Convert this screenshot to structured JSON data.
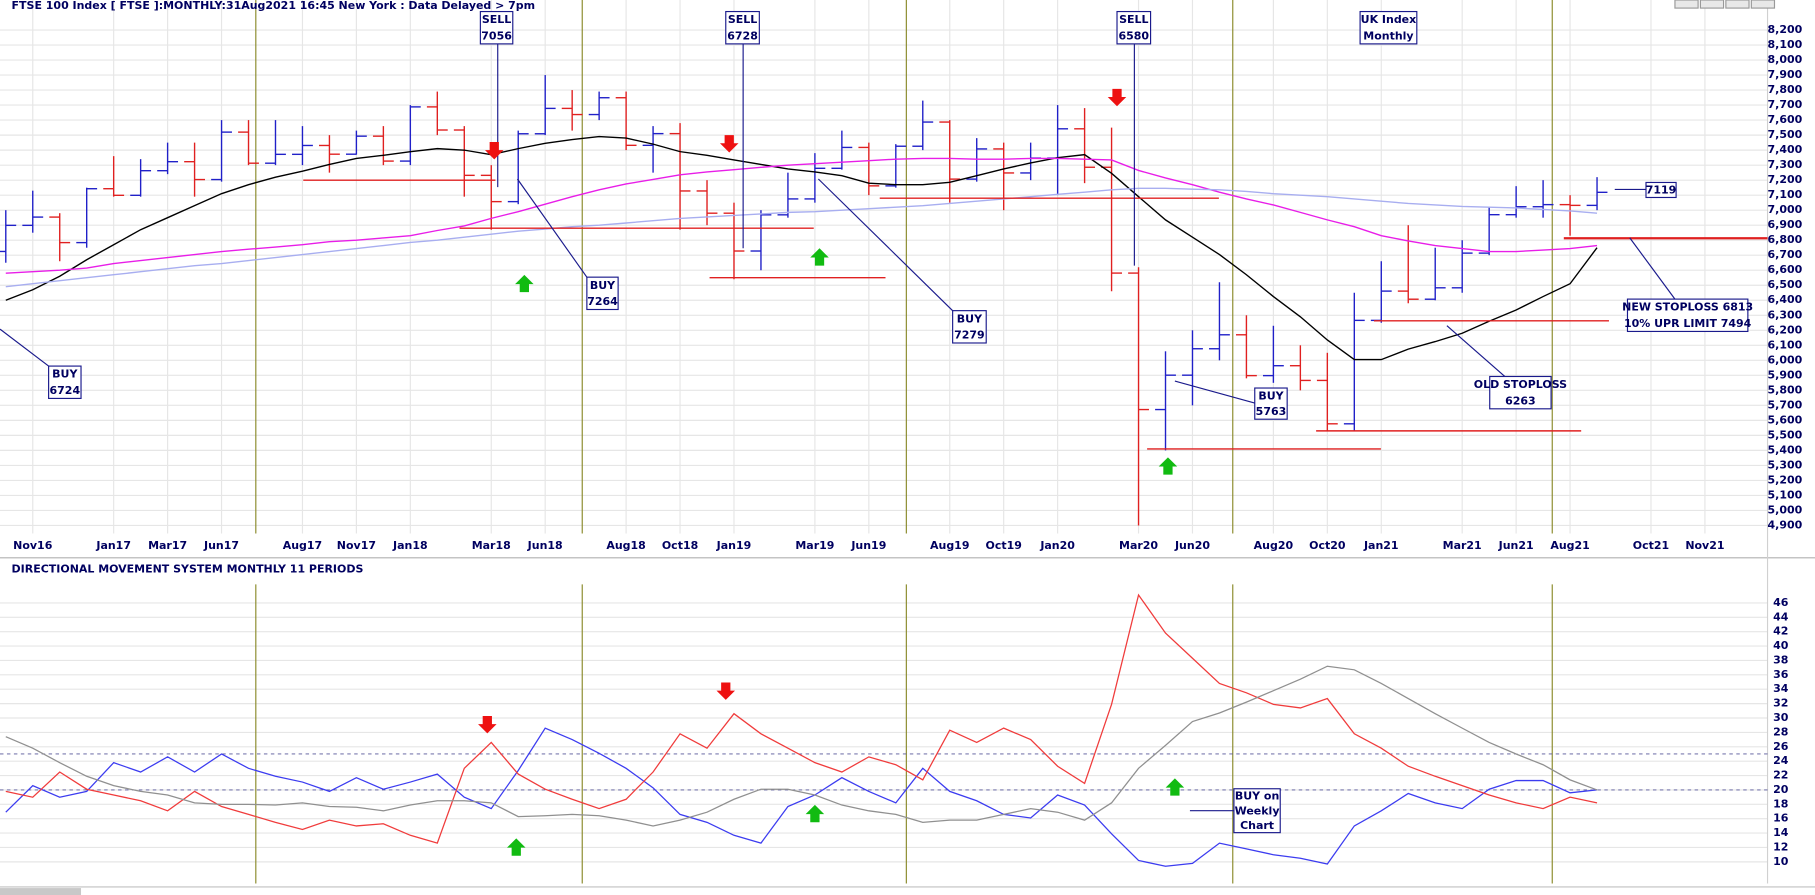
{
  "chart_data": [
    {
      "type": "ohlc",
      "title": "FTSE 100 Index [ FTSE ]:MONTHLY:31Aug2021 16:45 New York : Data Delayed > 7pm",
      "categories": [
        null,
        "Nov16",
        null,
        null,
        "Jan17",
        null,
        "Mar17",
        null,
        "Jun17",
        null,
        null,
        "Aug17",
        null,
        "Nov17",
        null,
        "Jan18",
        null,
        null,
        "Mar18",
        null,
        "Jun18",
        null,
        null,
        "Aug18",
        null,
        "Oct18",
        null,
        "Jan19",
        null,
        null,
        "Mar19",
        null,
        "Jun19",
        null,
        null,
        "Aug19",
        null,
        "Oct19",
        null,
        "Jan20",
        null,
        null,
        "Mar20",
        null,
        "Jun20",
        null,
        null,
        "Aug20",
        null,
        "Oct20",
        null,
        "Jan21",
        null,
        null,
        "Mar21",
        null,
        "Jun21",
        null,
        "Aug21",
        null,
        null,
        "Oct21",
        null,
        "Nov21"
      ],
      "open": [
        6725,
        6899,
        6954,
        6784,
        7143,
        7099,
        7263,
        7323,
        7204,
        7520,
        7313,
        7372,
        7431,
        7373,
        7493,
        7327,
        7688,
        7534,
        7232,
        7057,
        7509,
        7678,
        7637,
        7749,
        7432,
        7510,
        7128,
        6980,
        6728,
        6969,
        7075,
        7279,
        7418,
        7162,
        7426,
        7587,
        7207,
        7408,
        7248,
        7347,
        7542,
        7286,
        6581,
        5672,
        5901,
        6077,
        6170,
        5898,
        5964,
        5866,
        5577,
        6266,
        6461,
        6407,
        6483,
        6714,
        6970,
        7023,
        7037,
        7032,
        null,
        null,
        null,
        null
      ],
      "high": [
        7000,
        7130,
        6980,
        7150,
        7360,
        7340,
        7450,
        7450,
        7600,
        7600,
        7600,
        7560,
        7500,
        7530,
        7560,
        7700,
        7790,
        7560,
        7300,
        7530,
        7900,
        7800,
        7790,
        7790,
        7560,
        7580,
        7200,
        7050,
        7000,
        7250,
        7380,
        7530,
        7450,
        7440,
        7730,
        7600,
        7480,
        7450,
        7450,
        7700,
        7680,
        7550,
        6620,
        6060,
        6200,
        6520,
        6300,
        6230,
        6100,
        6050,
        6450,
        6660,
        6900,
        6750,
        6800,
        7020,
        7160,
        7200,
        7100,
        7220,
        null,
        null,
        null,
        null
      ],
      "low": [
        6650,
        6850,
        6660,
        6750,
        7090,
        7090,
        7240,
        7090,
        7190,
        7300,
        7300,
        7300,
        7250,
        7370,
        7300,
        7300,
        7500,
        7090,
        6870,
        7040,
        7500,
        7530,
        7600,
        7400,
        7250,
        6870,
        6900,
        6540,
        6600,
        6950,
        7050,
        7270,
        7100,
        7150,
        7400,
        7050,
        7190,
        7000,
        7200,
        7100,
        7180,
        6460,
        4900,
        5400,
        5700,
        6000,
        5880,
        5850,
        5800,
        5530,
        5530,
        6250,
        6380,
        6400,
        6450,
        6700,
        6950,
        6950,
        6830,
        7000,
        null,
        null,
        null,
        null
      ],
      "close": [
        6899,
        6954,
        6784,
        7143,
        7099,
        7263,
        7323,
        7204,
        7520,
        7313,
        7372,
        7431,
        7373,
        7493,
        7327,
        7688,
        7534,
        7232,
        7057,
        7509,
        7678,
        7637,
        7749,
        7432,
        7510,
        7128,
        6980,
        6728,
        6969,
        7075,
        7279,
        7418,
        7162,
        7426,
        7587,
        7207,
        7408,
        7248,
        7347,
        7542,
        7286,
        6581,
        5672,
        5901,
        6077,
        6170,
        5898,
        5964,
        5866,
        5577,
        6266,
        6461,
        6407,
        6483,
        6714,
        6970,
        7023,
        7037,
        7032,
        7119,
        null,
        null,
        null,
        null
      ],
      "up_color": "#2020c8",
      "down_color": "#e02020",
      "series": [
        {
          "color": "#000000",
          "values": [
            6400,
            6470,
            6560,
            6670,
            6770,
            6870,
            6950,
            7030,
            7110,
            7170,
            7220,
            7260,
            7305,
            7345,
            7365,
            7390,
            7410,
            7400,
            7370,
            7410,
            7445,
            7470,
            7490,
            7480,
            7440,
            7390,
            7365,
            7335,
            7305,
            7275,
            7255,
            7230,
            7180,
            7170,
            7170,
            7185,
            7230,
            7275,
            7315,
            7350,
            7370,
            7245,
            7090,
            6935,
            6820,
            6705,
            6570,
            6425,
            6290,
            6135,
            6005,
            6005,
            6075,
            6125,
            6180,
            6260,
            6335,
            6425,
            6510,
            6750,
            null,
            null,
            null,
            null
          ]
        },
        {
          "color": "#e81ee8",
          "values": [
            6580,
            6590,
            6600,
            6615,
            6645,
            6665,
            6685,
            6705,
            6725,
            6740,
            6755,
            6770,
            6790,
            6800,
            6815,
            6830,
            6865,
            6895,
            6945,
            6990,
            7040,
            7090,
            7135,
            7175,
            7205,
            7235,
            7255,
            7270,
            7285,
            7300,
            7310,
            7320,
            7330,
            7340,
            7345,
            7345,
            7340,
            7340,
            7345,
            7345,
            7340,
            7335,
            7265,
            7215,
            7170,
            7120,
            7075,
            7035,
            6985,
            6935,
            6890,
            6830,
            6795,
            6765,
            6745,
            6725,
            6725,
            6735,
            6745,
            6765,
            null,
            null,
            null,
            null
          ]
        },
        {
          "color": "#a8aef0",
          "values": [
            6490,
            6510,
            6530,
            6550,
            6570,
            6590,
            6610,
            6630,
            6645,
            6665,
            6685,
            6705,
            6725,
            6745,
            6765,
            6785,
            6800,
            6820,
            6840,
            6860,
            6875,
            6890,
            6900,
            6915,
            6930,
            6945,
            6955,
            6965,
            6975,
            6985,
            6990,
            7000,
            7010,
            7020,
            7030,
            7045,
            7060,
            7075,
            7090,
            7105,
            7120,
            7135,
            7145,
            7145,
            7140,
            7135,
            7125,
            7110,
            7100,
            7090,
            7075,
            7060,
            7045,
            7035,
            7025,
            7020,
            7015,
            7005,
            6995,
            6980,
            null,
            null,
            null,
            null
          ]
        }
      ],
      "levels": {
        "color": "#e02020",
        "values": [
          7200,
          6880,
          6550,
          7080,
          5410,
          6263,
          5530,
          6813
        ]
      },
      "annotations": [
        {
          "lines": [
            "SELL",
            "7056"
          ]
        },
        {
          "lines": [
            "SELL",
            "6728"
          ]
        },
        {
          "lines": [
            "SELL",
            "6580"
          ]
        },
        {
          "lines": [
            "UK Index",
            "Monthly"
          ]
        },
        {
          "lines": [
            "BUY",
            "6724"
          ]
        },
        {
          "lines": [
            "BUY",
            "7264"
          ]
        },
        {
          "lines": [
            "BUY",
            "7279"
          ]
        },
        {
          "lines": [
            "BUY",
            "5763"
          ]
        },
        {
          "lines": [
            "OLD STOPLOSS",
            "6263"
          ]
        },
        {
          "lines": [
            "NEW STOPLOSS 6813",
            "10% UPR LIMIT 7494"
          ]
        },
        {
          "lines": [
            "7119"
          ]
        }
      ],
      "ylim": [
        4850,
        8400
      ],
      "yticks": [
        {
          "value": 4900,
          "label": "4,900"
        },
        {
          "value": 5000,
          "label": "5,000"
        },
        {
          "value": 5100,
          "label": "5,100"
        },
        {
          "value": 5200,
          "label": "5,200"
        },
        {
          "value": 5300,
          "label": "5,300"
        },
        {
          "value": 5400,
          "label": "5,400"
        },
        {
          "value": 5500,
          "label": "5,500"
        },
        {
          "value": 5600,
          "label": "5,600"
        },
        {
          "value": 5700,
          "label": "5,700"
        },
        {
          "value": 5800,
          "label": "5,800"
        },
        {
          "value": 5900,
          "label": "5,900"
        },
        {
          "value": 6000,
          "label": "6,000"
        },
        {
          "value": 6100,
          "label": "6,100"
        },
        {
          "value": 6200,
          "label": "6,200"
        },
        {
          "value": 6300,
          "label": "6,300"
        },
        {
          "value": 6400,
          "label": "6,400"
        },
        {
          "value": 6500,
          "label": "6,500"
        },
        {
          "value": 6600,
          "label": "6,600"
        },
        {
          "value": 6700,
          "label": "6,700"
        },
        {
          "value": 6800,
          "label": "6,800"
        },
        {
          "value": 6900,
          "label": "6,900"
        },
        {
          "value": 7000,
          "label": "7,000"
        },
        {
          "value": 7100,
          "label": "7,100"
        },
        {
          "value": 7200,
          "label": "7,200"
        },
        {
          "value": 7300,
          "label": "7,300"
        },
        {
          "value": 7400,
          "label": "7,400"
        },
        {
          "value": 7500,
          "label": "7,500"
        },
        {
          "value": 7600,
          "label": "7,600"
        },
        {
          "value": 7700,
          "label": "7,700"
        },
        {
          "value": 7800,
          "label": "7,800"
        },
        {
          "value": 7900,
          "label": "7,900"
        },
        {
          "value": 8000,
          "label": "8,000"
        },
        {
          "value": 8100,
          "label": "8,100"
        },
        {
          "value": 8200,
          "label": "8,200"
        }
      ],
      "grid": true
    },
    {
      "type": "line",
      "title": "DIRECTIONAL MOVEMENT SYSTEM MONTHLY 11 PERIODS",
      "series": [
        {
          "color": "#3c3cf0",
          "values": [
            16.9,
            20.6,
            19.0,
            19.8,
            23.8,
            22.5,
            24.6,
            22.5,
            25.0,
            23.0,
            21.9,
            21.1,
            19.8,
            21.7,
            20.1,
            21.1,
            22.2,
            19.0,
            17.4,
            22.7,
            28.6,
            27.0,
            25.1,
            23.0,
            20.3,
            16.6,
            15.5,
            13.7,
            12.6,
            17.7,
            19.3,
            21.7,
            19.8,
            18.2,
            23.0,
            19.8,
            18.5,
            16.6,
            16.1,
            19.3,
            17.9,
            13.9,
            10.2,
            9.4,
            9.8,
            12.6,
            11.8,
            11.0,
            10.5,
            9.7,
            15.0,
            17.1,
            19.5,
            18.2,
            17.4,
            20.1,
            21.3,
            21.3,
            19.6,
            20.0
          ]
        },
        {
          "color": "#f03c3c",
          "values": [
            19.8,
            19.0,
            22.5,
            20.1,
            19.3,
            18.5,
            17.1,
            19.8,
            17.7,
            16.6,
            15.5,
            14.5,
            15.8,
            15.0,
            15.3,
            13.7,
            12.6,
            23.0,
            26.6,
            22.2,
            20.1,
            18.7,
            17.4,
            18.7,
            22.5,
            27.8,
            25.8,
            30.6,
            27.8,
            25.8,
            23.8,
            22.5,
            24.6,
            23.5,
            21.4,
            28.3,
            26.6,
            28.6,
            27.0,
            23.3,
            20.9,
            31.9,
            47.1,
            41.8,
            38.3,
            34.8,
            33.5,
            31.9,
            31.4,
            32.7,
            27.8,
            25.8,
            23.3,
            21.9,
            20.6,
            19.3,
            18.2,
            17.4,
            19.0,
            18.2
          ]
        },
        {
          "color": "#909090",
          "values": [
            27.4,
            25.8,
            23.8,
            21.9,
            20.6,
            19.8,
            19.3,
            18.2,
            18.0,
            18.0,
            17.9,
            18.2,
            17.7,
            17.6,
            17.1,
            17.9,
            18.5,
            18.5,
            18.2,
            16.3,
            16.4,
            16.6,
            16.4,
            15.8,
            15.0,
            15.8,
            16.9,
            18.7,
            20.1,
            20.1,
            19.3,
            17.9,
            17.1,
            16.6,
            15.5,
            15.8,
            15.8,
            16.6,
            17.4,
            16.9,
            15.8,
            18.2,
            23.0,
            26.2,
            29.5,
            30.7,
            32.2,
            33.8,
            35.4,
            37.2,
            36.7,
            34.8,
            32.7,
            30.6,
            28.6,
            26.6,
            25.0,
            23.5,
            21.4,
            20.0
          ]
        }
      ],
      "reference_lines": [
        25,
        20
      ],
      "annotations": [
        {
          "lines": [
            "BUY on",
            "Weekly",
            "Chart"
          ]
        }
      ],
      "ylim": [
        7,
        48.5
      ],
      "yticks": [
        10,
        12,
        14,
        16,
        18,
        20,
        22,
        24,
        26,
        28,
        30,
        32,
        34,
        36,
        38,
        40,
        42,
        44,
        46
      ],
      "grid": true
    }
  ]
}
